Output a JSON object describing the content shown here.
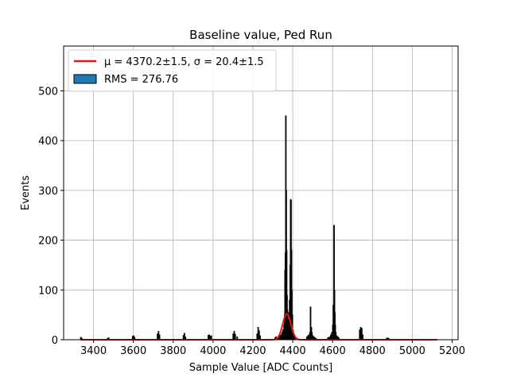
{
  "chart_data": {
    "type": "bar",
    "title": "Baseline value, Ped Run",
    "xlabel": "Sample Value [ADC Counts]",
    "ylabel": "Events",
    "xlim": [
      3250,
      5230
    ],
    "ylim": [
      0,
      590
    ],
    "xticks": [
      3400,
      3600,
      3800,
      4000,
      4200,
      4400,
      4600,
      4800,
      5000,
      5200
    ],
    "yticks": [
      0,
      100,
      200,
      300,
      400,
      500
    ],
    "grid": true,
    "legend_position": "top-left",
    "legend": [
      {
        "label": "μ = 4370.2±1.5, σ = 20.4±1.5",
        "kind": "line",
        "color": "#ee1111"
      },
      {
        "label": "RMS = 276.76",
        "kind": "patch",
        "color": "#1f77b4"
      }
    ],
    "series": [
      {
        "name": "RMS = 276.76",
        "kind": "histogram",
        "bins": [
          [
            3335,
            5
          ],
          [
            3340,
            3
          ],
          [
            3470,
            3
          ],
          [
            3475,
            4
          ],
          [
            3595,
            7
          ],
          [
            3600,
            8
          ],
          [
            3605,
            5
          ],
          [
            3720,
            12
          ],
          [
            3725,
            17
          ],
          [
            3730,
            10
          ],
          [
            3850,
            9
          ],
          [
            3855,
            13
          ],
          [
            3860,
            6
          ],
          [
            3975,
            9
          ],
          [
            3980,
            10
          ],
          [
            3985,
            7
          ],
          [
            3990,
            8
          ],
          [
            4100,
            12
          ],
          [
            4105,
            17
          ],
          [
            4110,
            11
          ],
          [
            4120,
            6
          ],
          [
            4220,
            12
          ],
          [
            4225,
            25
          ],
          [
            4230,
            18
          ],
          [
            4235,
            8
          ],
          [
            4310,
            4
          ],
          [
            4315,
            6
          ],
          [
            4320,
            4
          ],
          [
            4325,
            5
          ],
          [
            4330,
            7
          ],
          [
            4335,
            8
          ],
          [
            4340,
            10
          ],
          [
            4345,
            15
          ],
          [
            4350,
            20
          ],
          [
            4355,
            30
          ],
          [
            4358,
            50
          ],
          [
            4360,
            140
          ],
          [
            4362,
            175
          ],
          [
            4364,
            450
          ],
          [
            4366,
            300
          ],
          [
            4368,
            180
          ],
          [
            4370,
            90
          ],
          [
            4372,
            60
          ],
          [
            4374,
            40
          ],
          [
            4377,
            30
          ],
          [
            4380,
            55
          ],
          [
            4383,
            80
          ],
          [
            4386,
            150
          ],
          [
            4388,
            282
          ],
          [
            4390,
            280
          ],
          [
            4392,
            180
          ],
          [
            4394,
            100
          ],
          [
            4397,
            50
          ],
          [
            4400,
            20
          ],
          [
            4405,
            8
          ],
          [
            4410,
            5
          ],
          [
            4470,
            6
          ],
          [
            4475,
            8
          ],
          [
            4480,
            10
          ],
          [
            4485,
            15
          ],
          [
            4488,
            66
          ],
          [
            4490,
            20
          ],
          [
            4492,
            25
          ],
          [
            4495,
            15
          ],
          [
            4500,
            8
          ],
          [
            4505,
            6
          ],
          [
            4510,
            4
          ],
          [
            4515,
            3
          ],
          [
            4575,
            4
          ],
          [
            4580,
            5
          ],
          [
            4585,
            6
          ],
          [
            4590,
            10
          ],
          [
            4595,
            15
          ],
          [
            4600,
            30
          ],
          [
            4603,
            70
          ],
          [
            4606,
            230
          ],
          [
            4608,
            100
          ],
          [
            4610,
            55
          ],
          [
            4612,
            30
          ],
          [
            4615,
            15
          ],
          [
            4620,
            8
          ],
          [
            4625,
            6
          ],
          [
            4630,
            4
          ],
          [
            4735,
            20
          ],
          [
            4740,
            25
          ],
          [
            4745,
            23
          ],
          [
            4750,
            10
          ],
          [
            4870,
            3
          ],
          [
            4875,
            4
          ],
          [
            4880,
            3
          ]
        ]
      },
      {
        "name": "μ = 4370.2±1.5, σ = 20.4±1.5",
        "kind": "gaussian",
        "mu": 4370.2,
        "sigma": 20.4,
        "amplitude": 52,
        "x_range": [
          3335,
          5125
        ]
      }
    ]
  }
}
